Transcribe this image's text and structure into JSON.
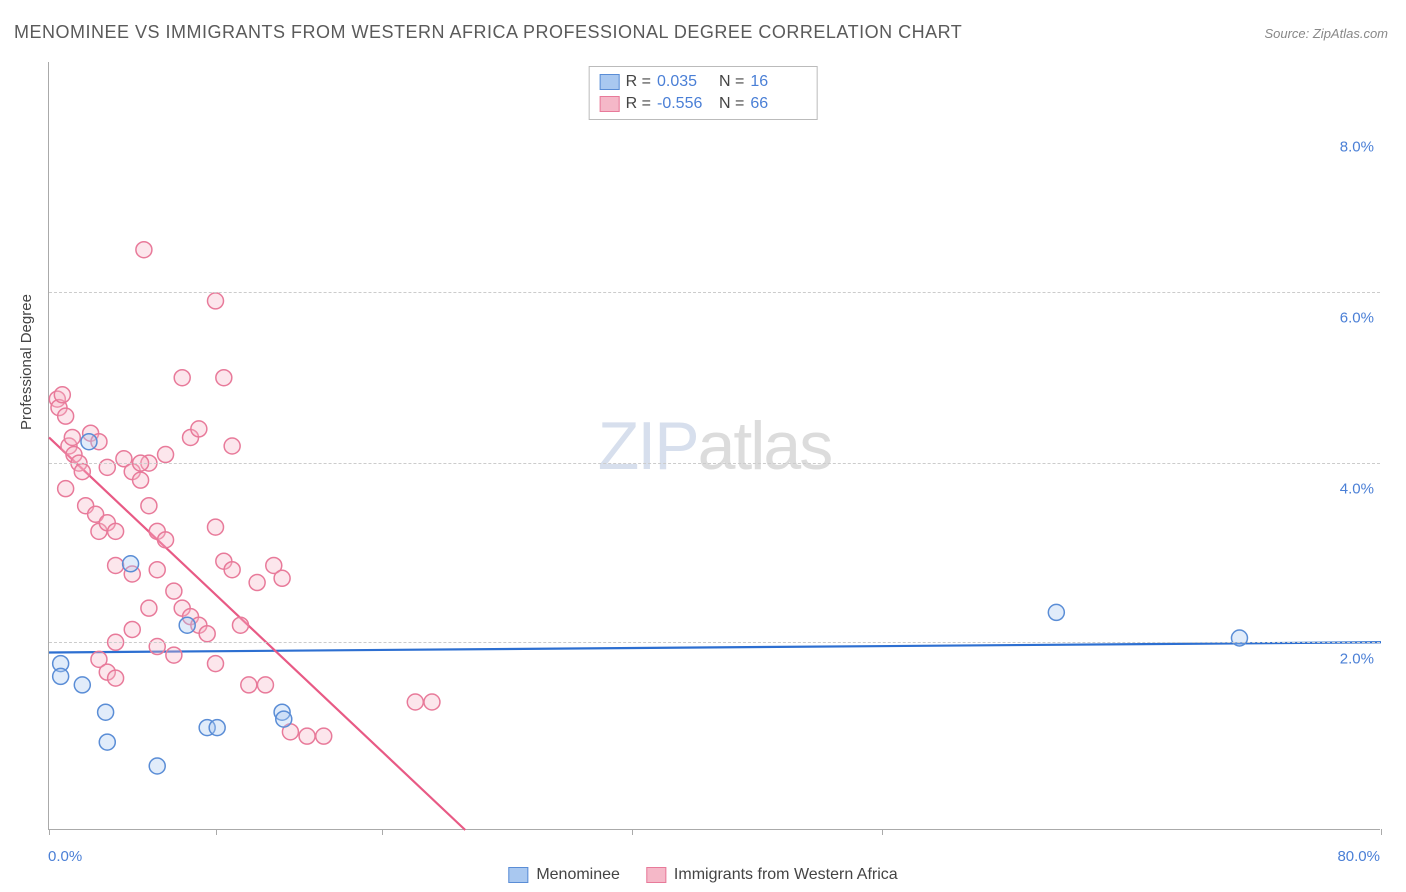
{
  "title": "MENOMINEE VS IMMIGRANTS FROM WESTERN AFRICA PROFESSIONAL DEGREE CORRELATION CHART",
  "source": "Source: ZipAtlas.com",
  "watermark": {
    "zip": "ZIP",
    "atlas": "atlas"
  },
  "ylabel": "Professional Degree",
  "chart": {
    "type": "scatter",
    "background_color": "#ffffff",
    "grid_color": "#cccccc",
    "axis_color": "#aaaaaa",
    "xlim": [
      0,
      80
    ],
    "ylim": [
      0,
      9
    ],
    "xticks": [
      0,
      10,
      20,
      35,
      50,
      80
    ],
    "gridlines_y": [
      2.2,
      4.3,
      6.3
    ],
    "ytick_labels": [
      {
        "y": 2.0,
        "label": "2.0%"
      },
      {
        "y": 4.0,
        "label": "4.0%"
      },
      {
        "y": 6.0,
        "label": "6.0%"
      },
      {
        "y": 8.0,
        "label": "8.0%"
      }
    ],
    "xmin_label": "0.0%",
    "xmax_label": "80.0%",
    "marker_radius": 8,
    "marker_stroke_width": 1.5,
    "marker_fill_opacity": 0.35,
    "trend_stroke_width": 2.2
  },
  "series": [
    {
      "id": "menominee",
      "label": "Menominee",
      "fill": "#a9c8f0",
      "stroke": "#5a8dd6",
      "trend_color": "#2d6fd1",
      "trend": {
        "x1": 0,
        "y1": 2.08,
        "x2": 80,
        "y2": 2.2
      },
      "R": "0.035",
      "N": "16",
      "points": [
        [
          0.7,
          1.95
        ],
        [
          0.7,
          1.8
        ],
        [
          2.0,
          1.7
        ],
        [
          2.4,
          4.55
        ],
        [
          3.4,
          1.38
        ],
        [
          3.5,
          1.03
        ],
        [
          4.9,
          3.12
        ],
        [
          6.5,
          0.75
        ],
        [
          8.3,
          2.4
        ],
        [
          9.5,
          1.2
        ],
        [
          10.1,
          1.2
        ],
        [
          14.0,
          1.38
        ],
        [
          14.1,
          1.3
        ],
        [
          60.5,
          2.55
        ],
        [
          71.5,
          2.25
        ]
      ]
    },
    {
      "id": "waf",
      "label": "Immigants from Western Africa",
      "fill": "#f5b8c8",
      "stroke": "#e87a9a",
      "trend_color": "#e85a85",
      "trend": {
        "x1": 0,
        "y1": 4.6,
        "x2": 25,
        "y2": 0.0
      },
      "R": "-0.556",
      "N": "66",
      "points": [
        [
          0.5,
          5.05
        ],
        [
          0.6,
          4.95
        ],
        [
          0.8,
          5.1
        ],
        [
          1.0,
          4.85
        ],
        [
          1.2,
          4.5
        ],
        [
          1.4,
          4.6
        ],
        [
          1.0,
          4.0
        ],
        [
          1.5,
          4.4
        ],
        [
          1.8,
          4.3
        ],
        [
          2.0,
          4.2
        ],
        [
          2.5,
          4.65
        ],
        [
          3.0,
          4.55
        ],
        [
          2.2,
          3.8
        ],
        [
          2.8,
          3.7
        ],
        [
          3.0,
          3.5
        ],
        [
          3.5,
          3.6
        ],
        [
          4.0,
          3.5
        ],
        [
          3.5,
          4.25
        ],
        [
          4.5,
          4.35
        ],
        [
          5.0,
          4.2
        ],
        [
          5.5,
          4.1
        ],
        [
          6.0,
          3.8
        ],
        [
          6.5,
          3.5
        ],
        [
          7.0,
          3.4
        ],
        [
          5.7,
          6.8
        ],
        [
          10.0,
          6.2
        ],
        [
          8.0,
          5.3
        ],
        [
          10.5,
          5.3
        ],
        [
          8.5,
          4.6
        ],
        [
          11.0,
          4.5
        ],
        [
          4.0,
          3.1
        ],
        [
          5.0,
          3.0
        ],
        [
          6.5,
          3.05
        ],
        [
          7.5,
          2.8
        ],
        [
          8.0,
          2.6
        ],
        [
          8.5,
          2.5
        ],
        [
          9.0,
          2.4
        ],
        [
          9.5,
          2.3
        ],
        [
          6.0,
          2.6
        ],
        [
          5.0,
          2.35
        ],
        [
          4.0,
          2.2
        ],
        [
          3.0,
          2.0
        ],
        [
          3.5,
          1.85
        ],
        [
          4.0,
          1.78
        ],
        [
          6.0,
          4.3
        ],
        [
          7.0,
          4.4
        ],
        [
          6.5,
          2.15
        ],
        [
          7.5,
          2.05
        ],
        [
          5.5,
          4.3
        ],
        [
          9.0,
          4.7
        ],
        [
          10.0,
          3.55
        ],
        [
          10.5,
          3.15
        ],
        [
          11.0,
          3.05
        ],
        [
          12.5,
          2.9
        ],
        [
          13.5,
          3.1
        ],
        [
          14.0,
          2.95
        ],
        [
          13.0,
          1.7
        ],
        [
          14.5,
          1.15
        ],
        [
          12.0,
          1.7
        ],
        [
          11.5,
          2.4
        ],
        [
          10.0,
          1.95
        ],
        [
          15.5,
          1.1
        ],
        [
          16.5,
          1.1
        ],
        [
          22.0,
          1.5
        ],
        [
          23.0,
          1.5
        ]
      ]
    }
  ],
  "legend_bottom_label": "Immigrants from Western Africa"
}
